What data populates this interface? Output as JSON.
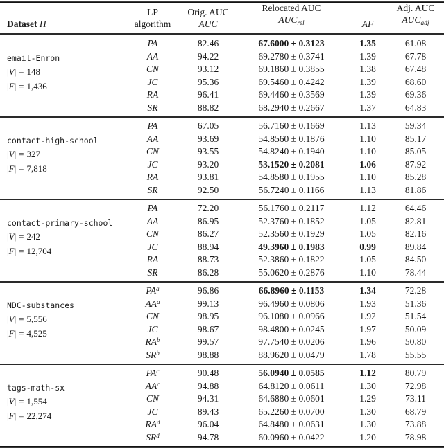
{
  "symbols": {
    "bar": "|",
    "eq": "=",
    "vertex_letter": "V",
    "edge_letter": "F"
  },
  "header": {
    "dataset_label": "Dataset",
    "dataset_var": "H",
    "lp_line1": "LP",
    "lp_line2": "algorithm",
    "orig_line1": "Orig. AUC",
    "orig_line2": "AUC",
    "rel_line1": "Relocated AUC",
    "rel_var": "AUC",
    "rel_sub": "rel",
    "af_label": "AF",
    "adj_line1": "Adj. AUC",
    "adj_var": "AUC",
    "adj_sub": "adj"
  },
  "blocks": [
    {
      "dataset": "email-Enron",
      "num_vertices": "148",
      "num_edges": "1,436",
      "rows": [
        {
          "alg": "PA",
          "sup": "",
          "orig": "82.46",
          "rel": "67.6000 ± 0.3123",
          "af": "1.35",
          "adj": "61.08",
          "bold": true
        },
        {
          "alg": "AA",
          "sup": "",
          "orig": "94.22",
          "rel": "69.2780 ± 0.3741",
          "af": "1.39",
          "adj": "67.78",
          "bold": false
        },
        {
          "alg": "CN",
          "sup": "",
          "orig": "93.12",
          "rel": "69.1860 ± 0.3855",
          "af": "1.38",
          "adj": "67.48",
          "bold": false
        },
        {
          "alg": "JC",
          "sup": "",
          "orig": "95.36",
          "rel": "69.5460 ± 0.4242",
          "af": "1.39",
          "adj": "68.60",
          "bold": false
        },
        {
          "alg": "RA",
          "sup": "",
          "orig": "96.41",
          "rel": "69.4460 ± 0.3569",
          "af": "1.39",
          "adj": "69.36",
          "bold": false
        },
        {
          "alg": "SR",
          "sup": "",
          "orig": "88.82",
          "rel": "68.2940 ± 0.2667",
          "af": "1.37",
          "adj": "64.83",
          "bold": false
        }
      ]
    },
    {
      "dataset": "contact-high-school",
      "num_vertices": "327",
      "num_edges": "7,818",
      "rows": [
        {
          "alg": "PA",
          "sup": "",
          "orig": "67.05",
          "rel": "56.7160 ± 0.1669",
          "af": "1.13",
          "adj": "59.34",
          "bold": false
        },
        {
          "alg": "AA",
          "sup": "",
          "orig": "93.69",
          "rel": "54.8560 ± 0.1876",
          "af": "1.10",
          "adj": "85.17",
          "bold": false
        },
        {
          "alg": "CN",
          "sup": "",
          "orig": "93.55",
          "rel": "54.8240 ± 0.1940",
          "af": "1.10",
          "adj": "85.05",
          "bold": false
        },
        {
          "alg": "JC",
          "sup": "",
          "orig": "93.20",
          "rel": "53.1520 ± 0.2081",
          "af": "1.06",
          "adj": "87.92",
          "bold": true
        },
        {
          "alg": "RA",
          "sup": "",
          "orig": "93.81",
          "rel": "54.8580 ± 0.1955",
          "af": "1.10",
          "adj": "85.28",
          "bold": false
        },
        {
          "alg": "SR",
          "sup": "",
          "orig": "92.50",
          "rel": "56.7240 ± 0.1166",
          "af": "1.13",
          "adj": "81.86",
          "bold": false
        }
      ]
    },
    {
      "dataset": "contact-primary-school",
      "num_vertices": "242",
      "num_edges": "12,704",
      "rows": [
        {
          "alg": "PA",
          "sup": "",
          "orig": "72.20",
          "rel": "56.1760 ± 0.2117",
          "af": "1.12",
          "adj": "64.46",
          "bold": false
        },
        {
          "alg": "AA",
          "sup": "",
          "orig": "86.95",
          "rel": "52.3760 ± 0.1852",
          "af": "1.05",
          "adj": "82.81",
          "bold": false
        },
        {
          "alg": "CN",
          "sup": "",
          "orig": "86.27",
          "rel": "52.3560 ± 0.1929",
          "af": "1.05",
          "adj": "82.16",
          "bold": false
        },
        {
          "alg": "JC",
          "sup": "",
          "orig": "88.94",
          "rel": "49.3960 ± 0.1983",
          "af": "0.99",
          "adj": "89.84",
          "bold": true
        },
        {
          "alg": "RA",
          "sup": "",
          "orig": "88.73",
          "rel": "52.3860 ± 0.1822",
          "af": "1.05",
          "adj": "84.50",
          "bold": false
        },
        {
          "alg": "SR",
          "sup": "",
          "orig": "86.28",
          "rel": "55.0620 ± 0.2876",
          "af": "1.10",
          "adj": "78.44",
          "bold": false
        }
      ]
    },
    {
      "dataset": "NDC-substances",
      "num_vertices": "5,556",
      "num_edges": "4,525",
      "rows": [
        {
          "alg": "PA",
          "sup": "a",
          "orig": "96.86",
          "rel": "66.8960 ± 0.1153",
          "af": "1.34",
          "adj": "72.28",
          "bold": true
        },
        {
          "alg": "AA",
          "sup": "a",
          "orig": "99.13",
          "rel": "96.4960 ± 0.0806",
          "af": "1.93",
          "adj": "51.36",
          "bold": false
        },
        {
          "alg": "CN",
          "sup": "",
          "orig": "98.95",
          "rel": "96.1080 ± 0.0966",
          "af": "1.92",
          "adj": "51.54",
          "bold": false
        },
        {
          "alg": "JC",
          "sup": "",
          "orig": "98.67",
          "rel": "98.4800 ± 0.0245",
          "af": "1.97",
          "adj": "50.09",
          "bold": false
        },
        {
          "alg": "RA",
          "sup": "b",
          "orig": "99.57",
          "rel": "97.7540 ± 0.0206",
          "af": "1.96",
          "adj": "50.80",
          "bold": false
        },
        {
          "alg": "SR",
          "sup": "b",
          "orig": "98.88",
          "rel": "88.9620 ± 0.0479",
          "af": "1.78",
          "adj": "55.55",
          "bold": false
        }
      ]
    },
    {
      "dataset": "tags-math-sx",
      "num_vertices": "1,554",
      "num_edges": "22,274",
      "rows": [
        {
          "alg": "PA",
          "sup": "c",
          "orig": "90.48",
          "rel": "56.0940 ± 0.0585",
          "af": "1.12",
          "adj": "80.79",
          "bold": true
        },
        {
          "alg": "AA",
          "sup": "c",
          "orig": "94.88",
          "rel": "64.8120 ± 0.0611",
          "af": "1.30",
          "adj": "72.98",
          "bold": false
        },
        {
          "alg": "CN",
          "sup": "",
          "orig": "94.31",
          "rel": "64.6880 ± 0.0601",
          "af": "1.29",
          "adj": "73.11",
          "bold": false
        },
        {
          "alg": "JC",
          "sup": "",
          "orig": "89.43",
          "rel": "65.2260 ± 0.0700",
          "af": "1.30",
          "adj": "68.79",
          "bold": false
        },
        {
          "alg": "RA",
          "sup": "d",
          "orig": "96.04",
          "rel": "64.8480 ± 0.0631",
          "af": "1.30",
          "adj": "73.88",
          "bold": false
        },
        {
          "alg": "SR",
          "sup": "d",
          "orig": "94.78",
          "rel": "60.0960 ± 0.0422",
          "af": "1.20",
          "adj": "78.98",
          "bold": false
        }
      ]
    }
  ]
}
